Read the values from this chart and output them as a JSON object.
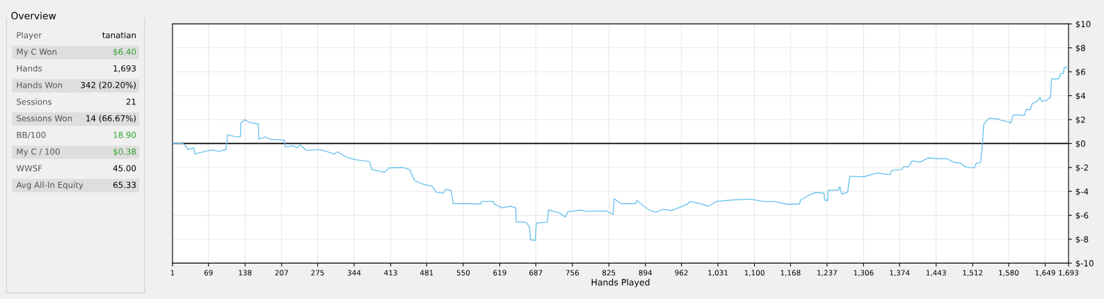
{
  "chart_data": [
    {
      "type": "other",
      "title": "Overview",
      "categories": [
        "Player",
        "My C Won",
        "Hands",
        "Hands Won",
        "Sessions",
        "Sessions Won",
        "BB/100",
        "My C / 100",
        "WWSF",
        "Avg All-In Equity"
      ],
      "value_labels": [
        "tanatian",
        "$6.40",
        "1,693",
        "342 (20.20%)",
        "21",
        "14 (66.67%)",
        "18.90",
        "$0.38",
        "45.00",
        "65.33"
      ],
      "colors": [
        "#000000",
        "#2ca02c",
        "#000000",
        "#000000",
        "#000000",
        "#000000",
        "#2ca02c",
        "#2ca02c",
        "#000000",
        "#000000"
      ]
    },
    {
      "type": "line",
      "xlabel": "Hands Played",
      "grid": true,
      "legend": false,
      "marker": "none",
      "line_style": "solid",
      "xlim": [
        1,
        1693
      ],
      "ylim": [
        -10,
        10
      ],
      "xticks": [
        1,
        69,
        138,
        207,
        275,
        344,
        413,
        481,
        550,
        619,
        687,
        756,
        825,
        894,
        962,
        {
          "value": 1031,
          "label": "1,031"
        },
        {
          "value": 1100,
          "label": "1,100"
        },
        {
          "value": 1168,
          "label": "1,168"
        },
        {
          "value": 1237,
          "label": "1,237"
        },
        {
          "value": 1306,
          "label": "1,306"
        },
        {
          "value": 1374,
          "label": "1,374"
        },
        {
          "value": 1443,
          "label": "1,443"
        },
        {
          "value": 1512,
          "label": "1,512"
        },
        {
          "value": 1580,
          "label": "1,580"
        },
        {
          "value": 1649,
          "label": "1,649"
        },
        {
          "value": 1693,
          "label": "1,693"
        }
      ],
      "yticks": [
        {
          "value": 10,
          "label": "$10"
        },
        {
          "value": 8,
          "label": "$8"
        },
        {
          "value": 6,
          "label": "$6"
        },
        {
          "value": 4,
          "label": "$4"
        },
        {
          "value": 2,
          "label": "$2"
        },
        {
          "value": 0,
          "label": "$0"
        },
        {
          "value": -2,
          "label": "$-2"
        },
        {
          "value": -4,
          "label": "$-4"
        },
        {
          "value": -6,
          "label": "$-6"
        },
        {
          "value": -8,
          "label": "$-8"
        },
        {
          "value": -10,
          "label": "$-10"
        }
      ],
      "ref_lines": [
        {
          "axis": "y",
          "value": 0,
          "color": "#000000"
        }
      ],
      "series": [
        {
          "color": "#6cc3ec",
          "x": [
            1,
            20,
            24,
            30,
            41,
            43,
            63,
            74,
            89,
            102,
            105,
            119,
            129,
            130,
            138,
            146,
            163,
            164,
            176,
            185,
            212,
            214,
            228,
            237,
            242,
            254,
            280,
            291,
            306,
            313,
            330,
            347,
            373,
            377,
            401,
            410,
            436,
            449,
            458,
            475,
            491,
            499,
            512,
            517,
            527,
            531,
            560,
            583,
            585,
            607,
            609,
            624,
            639,
            649,
            650,
            668,
            675,
            677,
            686,
            688,
            709,
            711,
            731,
            743,
            747,
            773,
            782,
            820,
            833,
            835,
            848,
            876,
            878,
            891,
            902,
            914,
            927,
            944,
            959,
            974,
            978,
            1000,
            1013,
            1028,
            1056,
            1092,
            1116,
            1137,
            1163,
            1185,
            1187,
            1200,
            1215,
            1231,
            1233,
            1238,
            1239,
            1259,
            1261,
            1265,
            1276,
            1280,
            1306,
            1332,
            1356,
            1359,
            1378,
            1382,
            1391,
            1398,
            1413,
            1428,
            1445,
            1463,
            1476,
            1489,
            1497,
            1515,
            1519,
            1527,
            1530,
            1533,
            1543,
            1560,
            1565,
            1580,
            1584,
            1589,
            1610,
            1613,
            1621,
            1624,
            1635,
            1639,
            1643,
            1650,
            1659,
            1661,
            1674,
            1678,
            1683,
            1685,
            1693
          ],
          "values": [
            0,
            0,
            -0.1,
            -0.5,
            -0.35,
            -0.87,
            -0.65,
            -0.55,
            -0.65,
            -0.5,
            0.73,
            0.58,
            0.55,
            1.71,
            2.0,
            1.76,
            1.64,
            0.36,
            0.55,
            0.36,
            0.29,
            -0.29,
            -0.18,
            -0.36,
            -0.11,
            -0.58,
            -0.51,
            -0.65,
            -0.87,
            -0.69,
            -1.16,
            -1.35,
            -1.51,
            -2.18,
            -2.4,
            -2.04,
            -2.0,
            -2.18,
            -3.09,
            -3.42,
            -3.56,
            -4.07,
            -4.15,
            -3.82,
            -3.93,
            -5.02,
            -5.02,
            -5.05,
            -4.84,
            -4.84,
            -5.09,
            -5.38,
            -5.24,
            -5.38,
            -6.55,
            -6.58,
            -6.95,
            -8.05,
            -8.1,
            -6.65,
            -6.58,
            -5.56,
            -5.78,
            -6.15,
            -5.71,
            -5.56,
            -5.67,
            -5.64,
            -5.93,
            -4.62,
            -5.02,
            -5.02,
            -4.76,
            -5.24,
            -5.56,
            -5.75,
            -5.51,
            -5.6,
            -5.33,
            -5.05,
            -4.84,
            -5.05,
            -5.24,
            -4.84,
            -4.73,
            -4.65,
            -4.84,
            -4.84,
            -5.09,
            -5.05,
            -4.73,
            -4.38,
            -4.09,
            -4.15,
            -4.73,
            -4.78,
            -3.93,
            -3.89,
            -3.6,
            -4.22,
            -4.05,
            -2.73,
            -2.78,
            -2.47,
            -2.6,
            -2.25,
            -2.18,
            -1.93,
            -1.93,
            -1.45,
            -1.56,
            -1.2,
            -1.27,
            -1.27,
            -1.56,
            -1.64,
            -1.93,
            -2.05,
            -1.64,
            -1.6,
            -0.29,
            1.64,
            2.11,
            2.04,
            1.95,
            1.82,
            1.71,
            2.4,
            2.36,
            2.84,
            2.84,
            3.31,
            3.58,
            3.85,
            3.53,
            3.58,
            3.85,
            5.4,
            5.4,
            5.85,
            5.85,
            6.36,
            6.4
          ]
        }
      ]
    }
  ]
}
